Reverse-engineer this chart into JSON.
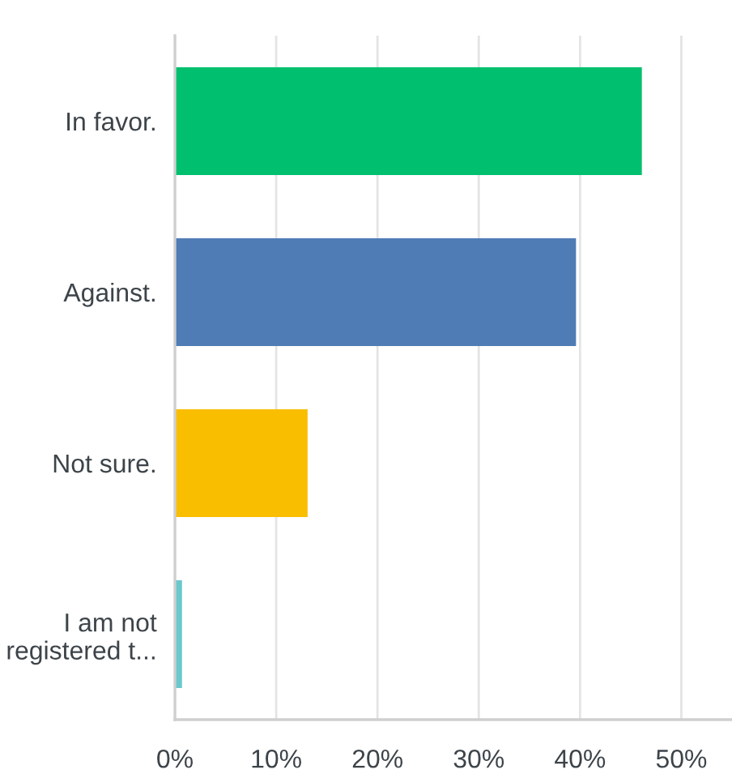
{
  "chart_data": {
    "type": "bar",
    "orientation": "horizontal",
    "categories": [
      "In favor.",
      "Against.",
      "Not sure.",
      "I am not\nregistered t..."
    ],
    "values": [
      46.1,
      39.6,
      13.1,
      0.7
    ],
    "colors": [
      "#00bf6f",
      "#507cb5",
      "#f9be00",
      "#6bc8cd"
    ],
    "xlim": [
      0,
      55
    ],
    "xticks": [
      {
        "value": 0,
        "label": "0%"
      },
      {
        "value": 10,
        "label": "10%"
      },
      {
        "value": 20,
        "label": "20%"
      },
      {
        "value": 30,
        "label": "30%"
      },
      {
        "value": 40,
        "label": "40%"
      },
      {
        "value": 50,
        "label": "50%"
      }
    ],
    "grid": "x"
  }
}
